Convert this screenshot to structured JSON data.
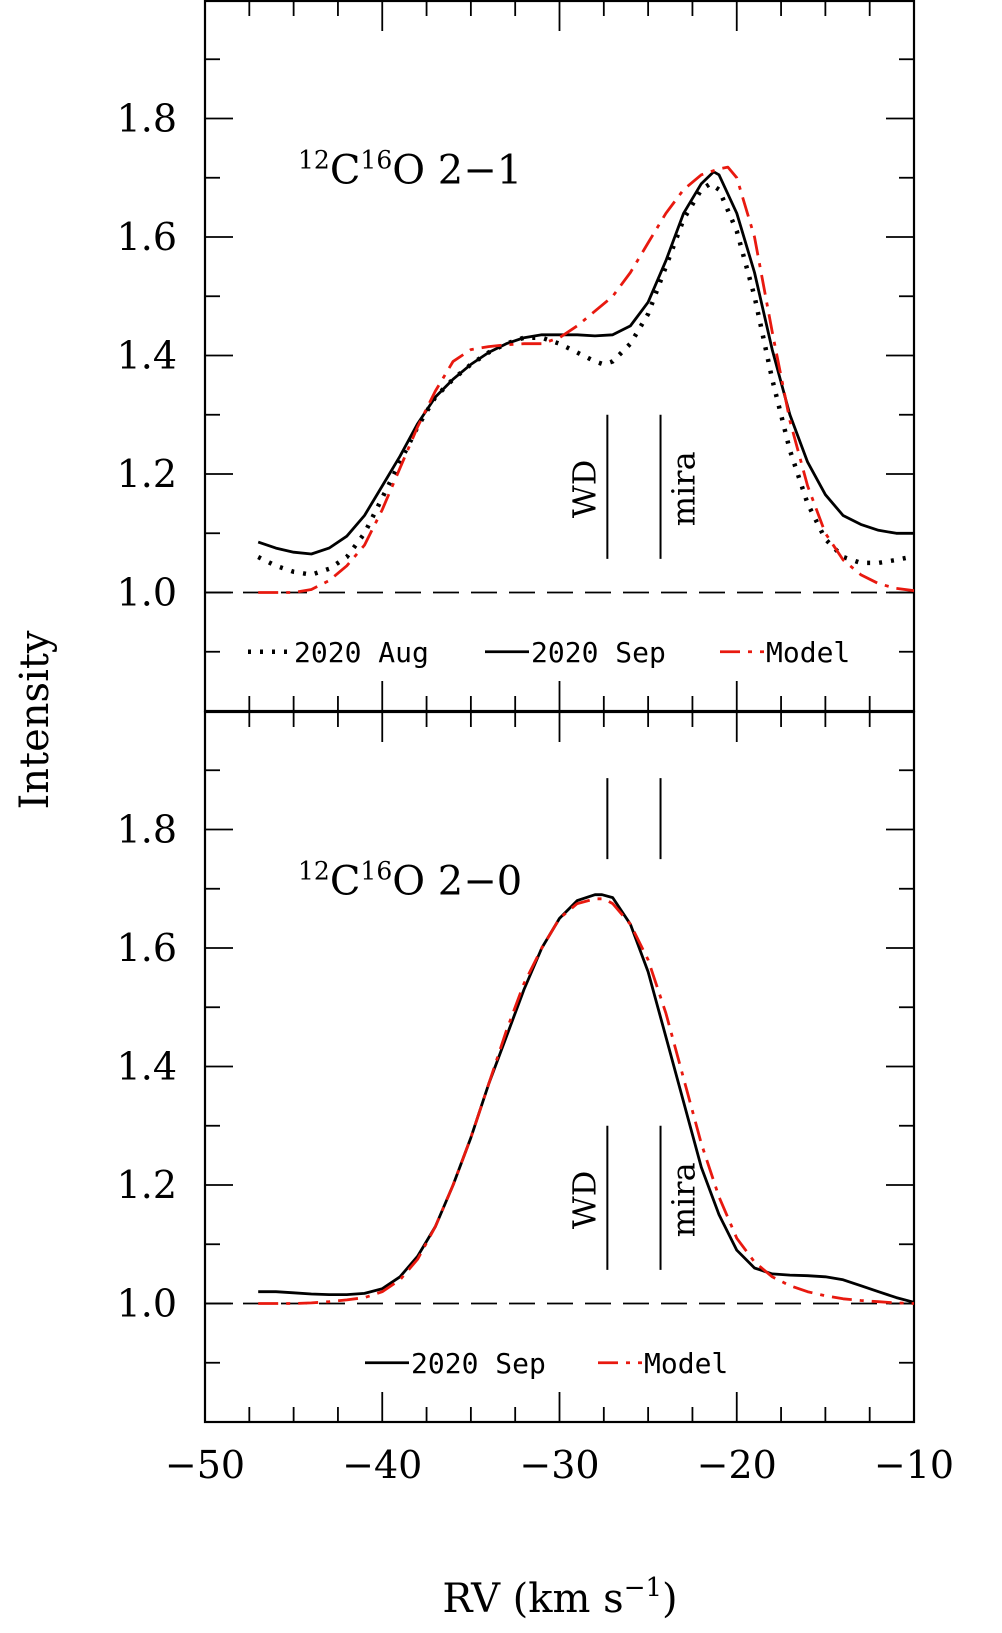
{
  "chart_data": [
    {
      "type": "line",
      "panel": "top",
      "title_parts": {
        "iso1": "12",
        "elem1": "C",
        "iso2": "16",
        "elem2": "O",
        "transition": " 2−1"
      },
      "xlim": [
        -50,
        -10
      ],
      "ylim": [
        0.8,
        2.0
      ],
      "yticks": [
        1.0,
        1.2,
        1.4,
        1.6,
        1.8
      ],
      "ytick_labels": [
        "1.0",
        "1.2",
        "1.4",
        "1.6",
        "1.8"
      ],
      "baseline": 1.0,
      "markers": [
        {
          "label": "WD",
          "x": -27.3,
          "y_range": [
            1.05,
            1.3
          ]
        },
        {
          "label": "mira",
          "x": -24.3,
          "y_range": [
            1.05,
            1.3
          ]
        }
      ],
      "legend": [
        "2020 Aug",
        "2020 Sep",
        "Model"
      ],
      "series": [
        {
          "name": "2020 Aug",
          "style": "dotted",
          "color": "#000000",
          "x": [
            -47,
            -46,
            -45,
            -44,
            -43,
            -42,
            -41,
            -40,
            -39,
            -38,
            -37,
            -36,
            -35,
            -34,
            -33,
            -32,
            -31,
            -30,
            -29,
            -28,
            -27.5,
            -27,
            -26,
            -25,
            -24,
            -23,
            -22,
            -21.5,
            -21,
            -20,
            -19,
            -18,
            -17,
            -16,
            -15,
            -14,
            -13,
            -12,
            -11,
            -10.2
          ],
          "y": [
            1.06,
            1.045,
            1.035,
            1.03,
            1.04,
            1.06,
            1.1,
            1.16,
            1.22,
            1.28,
            1.33,
            1.36,
            1.385,
            1.405,
            1.42,
            1.43,
            1.43,
            1.42,
            1.405,
            1.39,
            1.385,
            1.39,
            1.42,
            1.47,
            1.55,
            1.63,
            1.68,
            1.69,
            1.68,
            1.61,
            1.5,
            1.36,
            1.24,
            1.15,
            1.09,
            1.06,
            1.05,
            1.05,
            1.055,
            1.06
          ]
        },
        {
          "name": "2020 Sep",
          "style": "solid",
          "color": "#000000",
          "x": [
            -47,
            -46,
            -45,
            -44,
            -43,
            -42,
            -41,
            -40,
            -39,
            -38,
            -37,
            -36,
            -35,
            -34,
            -33,
            -32,
            -31,
            -30,
            -29,
            -28,
            -27,
            -26,
            -25,
            -24,
            -23,
            -22,
            -21.3,
            -21,
            -20,
            -19,
            -18,
            -17,
            -16,
            -15,
            -14,
            -13,
            -12,
            -11,
            -10
          ],
          "y": [
            1.085,
            1.075,
            1.068,
            1.065,
            1.075,
            1.095,
            1.13,
            1.18,
            1.23,
            1.285,
            1.33,
            1.36,
            1.385,
            1.405,
            1.42,
            1.43,
            1.435,
            1.435,
            1.435,
            1.433,
            1.435,
            1.45,
            1.49,
            1.56,
            1.64,
            1.69,
            1.71,
            1.705,
            1.64,
            1.54,
            1.41,
            1.3,
            1.22,
            1.165,
            1.13,
            1.115,
            1.105,
            1.1,
            1.1
          ]
        },
        {
          "name": "Model",
          "style": "dashdot",
          "color": "#e8190f",
          "x": [
            -47,
            -46,
            -45,
            -44,
            -43,
            -42,
            -41,
            -40,
            -39,
            -38,
            -37,
            -36,
            -35,
            -34,
            -33,
            -32,
            -31,
            -30,
            -29,
            -28,
            -27,
            -26,
            -25,
            -24,
            -23,
            -22,
            -21,
            -20.5,
            -20,
            -19,
            -18,
            -17,
            -16,
            -15,
            -14,
            -13,
            -12,
            -11,
            -10
          ],
          "y": [
            1.0,
            1.0,
            1.0,
            1.005,
            1.02,
            1.045,
            1.08,
            1.14,
            1.21,
            1.28,
            1.34,
            1.39,
            1.41,
            1.415,
            1.418,
            1.42,
            1.42,
            1.43,
            1.45,
            1.475,
            1.5,
            1.54,
            1.59,
            1.64,
            1.68,
            1.705,
            1.715,
            1.718,
            1.7,
            1.6,
            1.44,
            1.29,
            1.18,
            1.1,
            1.055,
            1.03,
            1.015,
            1.007,
            1.003
          ]
        }
      ]
    },
    {
      "type": "line",
      "panel": "bottom",
      "title_parts": {
        "iso1": "12",
        "elem1": "C",
        "iso2": "16",
        "elem2": "O",
        "transition": " 2−0"
      },
      "xlim": [
        -50,
        -10
      ],
      "ylim": [
        0.8,
        2.0
      ],
      "yticks": [
        1.0,
        1.2,
        1.4,
        1.6,
        1.8
      ],
      "ytick_labels": [
        "1.0",
        "1.2",
        "1.4",
        "1.6",
        "1.8"
      ],
      "xticks": [
        -50,
        -40,
        -30,
        -20,
        -10
      ],
      "xtick_labels": [
        "−50",
        "−40",
        "−30",
        "−20",
        "−10"
      ],
      "baseline": 1.0,
      "markers": [
        {
          "label": "WD",
          "x": -27.3,
          "y_range": [
            1.05,
            1.3
          ]
        },
        {
          "label": "mira",
          "x": -24.3,
          "y_range": [
            1.05,
            1.3
          ]
        }
      ],
      "top_ticks_markers_y_range": [
        1.75,
        1.88
      ],
      "legend": [
        "2020 Sep",
        "Model"
      ],
      "series": [
        {
          "name": "2020 Sep",
          "style": "solid",
          "color": "#000000",
          "x": [
            -47,
            -46,
            -45,
            -44,
            -43,
            -42,
            -41,
            -40,
            -39,
            -38,
            -37,
            -36,
            -35,
            -34,
            -33,
            -32,
            -31,
            -30,
            -29,
            -28,
            -27.6,
            -27,
            -26,
            -25,
            -24,
            -23,
            -22,
            -21,
            -20,
            -19,
            -18,
            -17,
            -16,
            -15,
            -14,
            -13,
            -12,
            -11,
            -10
          ],
          "y": [
            1.02,
            1.02,
            1.018,
            1.016,
            1.015,
            1.015,
            1.017,
            1.025,
            1.045,
            1.08,
            1.13,
            1.2,
            1.28,
            1.37,
            1.45,
            1.53,
            1.6,
            1.65,
            1.68,
            1.69,
            1.69,
            1.685,
            1.64,
            1.56,
            1.45,
            1.34,
            1.23,
            1.15,
            1.09,
            1.06,
            1.05,
            1.048,
            1.047,
            1.045,
            1.04,
            1.03,
            1.02,
            1.01,
            1.002
          ]
        },
        {
          "name": "Model",
          "style": "dashdot",
          "color": "#e8190f",
          "x": [
            -47,
            -46,
            -45,
            -44,
            -43,
            -42,
            -41,
            -40,
            -39,
            -38,
            -37,
            -36,
            -35,
            -34,
            -33,
            -32,
            -31,
            -30,
            -29,
            -28,
            -27.5,
            -27,
            -26,
            -25,
            -24,
            -23,
            -22,
            -21,
            -20,
            -19,
            -18,
            -17,
            -16,
            -15,
            -14,
            -13,
            -12,
            -11,
            -10
          ],
          "y": [
            1.0,
            1.0,
            1.0,
            1.001,
            1.003,
            1.006,
            1.01,
            1.02,
            1.04,
            1.075,
            1.13,
            1.2,
            1.28,
            1.37,
            1.46,
            1.54,
            1.6,
            1.65,
            1.675,
            1.683,
            1.683,
            1.675,
            1.64,
            1.58,
            1.49,
            1.38,
            1.27,
            1.18,
            1.11,
            1.07,
            1.045,
            1.03,
            1.02,
            1.013,
            1.008,
            1.005,
            1.003,
            1.001,
            1.0
          ]
        }
      ]
    }
  ],
  "xlabel": {
    "main": "RV (km s",
    "sup": "−1",
    "close": ")"
  },
  "ylabel": "Intensity"
}
